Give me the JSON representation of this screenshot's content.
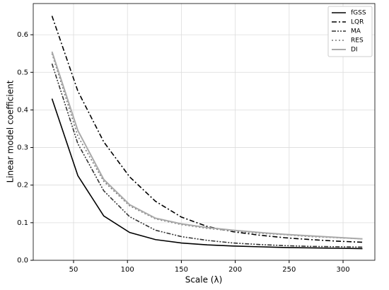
{
  "chart_data": {
    "type": "line",
    "xlabel": "Scale (λ)",
    "ylabel": "Linear model coefficient",
    "x": [
      30,
      54,
      78,
      102,
      126,
      150,
      174,
      198,
      222,
      246,
      270,
      294,
      318
    ],
    "series": [
      {
        "name": "fGSS",
        "color": "#000000",
        "linestyle": "solid",
        "values": [
          0.43,
          0.225,
          0.118,
          0.074,
          0.055,
          0.046,
          0.041,
          0.038,
          0.036,
          0.034,
          0.033,
          0.032,
          0.031
        ]
      },
      {
        "name": "LQR",
        "color": "#000000",
        "linestyle": "dashdot",
        "values": [
          0.65,
          0.45,
          0.315,
          0.222,
          0.157,
          0.115,
          0.09,
          0.076,
          0.067,
          0.06,
          0.055,
          0.051,
          0.048
        ]
      },
      {
        "name": "MA",
        "color": "#333333",
        "linestyle": "dashdotdot",
        "values": [
          0.523,
          0.31,
          0.185,
          0.116,
          0.08,
          0.063,
          0.053,
          0.046,
          0.042,
          0.039,
          0.037,
          0.036,
          0.035
        ]
      },
      {
        "name": "RES",
        "color": "#777777",
        "linestyle": "dotted",
        "values": [
          0.55,
          0.33,
          0.21,
          0.145,
          0.11,
          0.095,
          0.085,
          0.078,
          0.072,
          0.068,
          0.063,
          0.06,
          0.057
        ]
      },
      {
        "name": "DI",
        "color": "#aaaaaa",
        "linestyle": "solid",
        "values": [
          0.555,
          0.345,
          0.215,
          0.148,
          0.112,
          0.097,
          0.087,
          0.08,
          0.074,
          0.069,
          0.065,
          0.061,
          0.057
        ]
      }
    ],
    "xlim": [
      12.6,
      329.5
    ],
    "ylim": [
      0,
      0.683
    ],
    "xticks": [
      50,
      100,
      150,
      200,
      250,
      300
    ],
    "yticks": [
      {
        "value": 0,
        "label": "0.0"
      },
      0.1,
      0.2,
      0.3,
      0.4,
      0.5,
      0.6
    ],
    "grid": true,
    "legend": "upper right"
  }
}
